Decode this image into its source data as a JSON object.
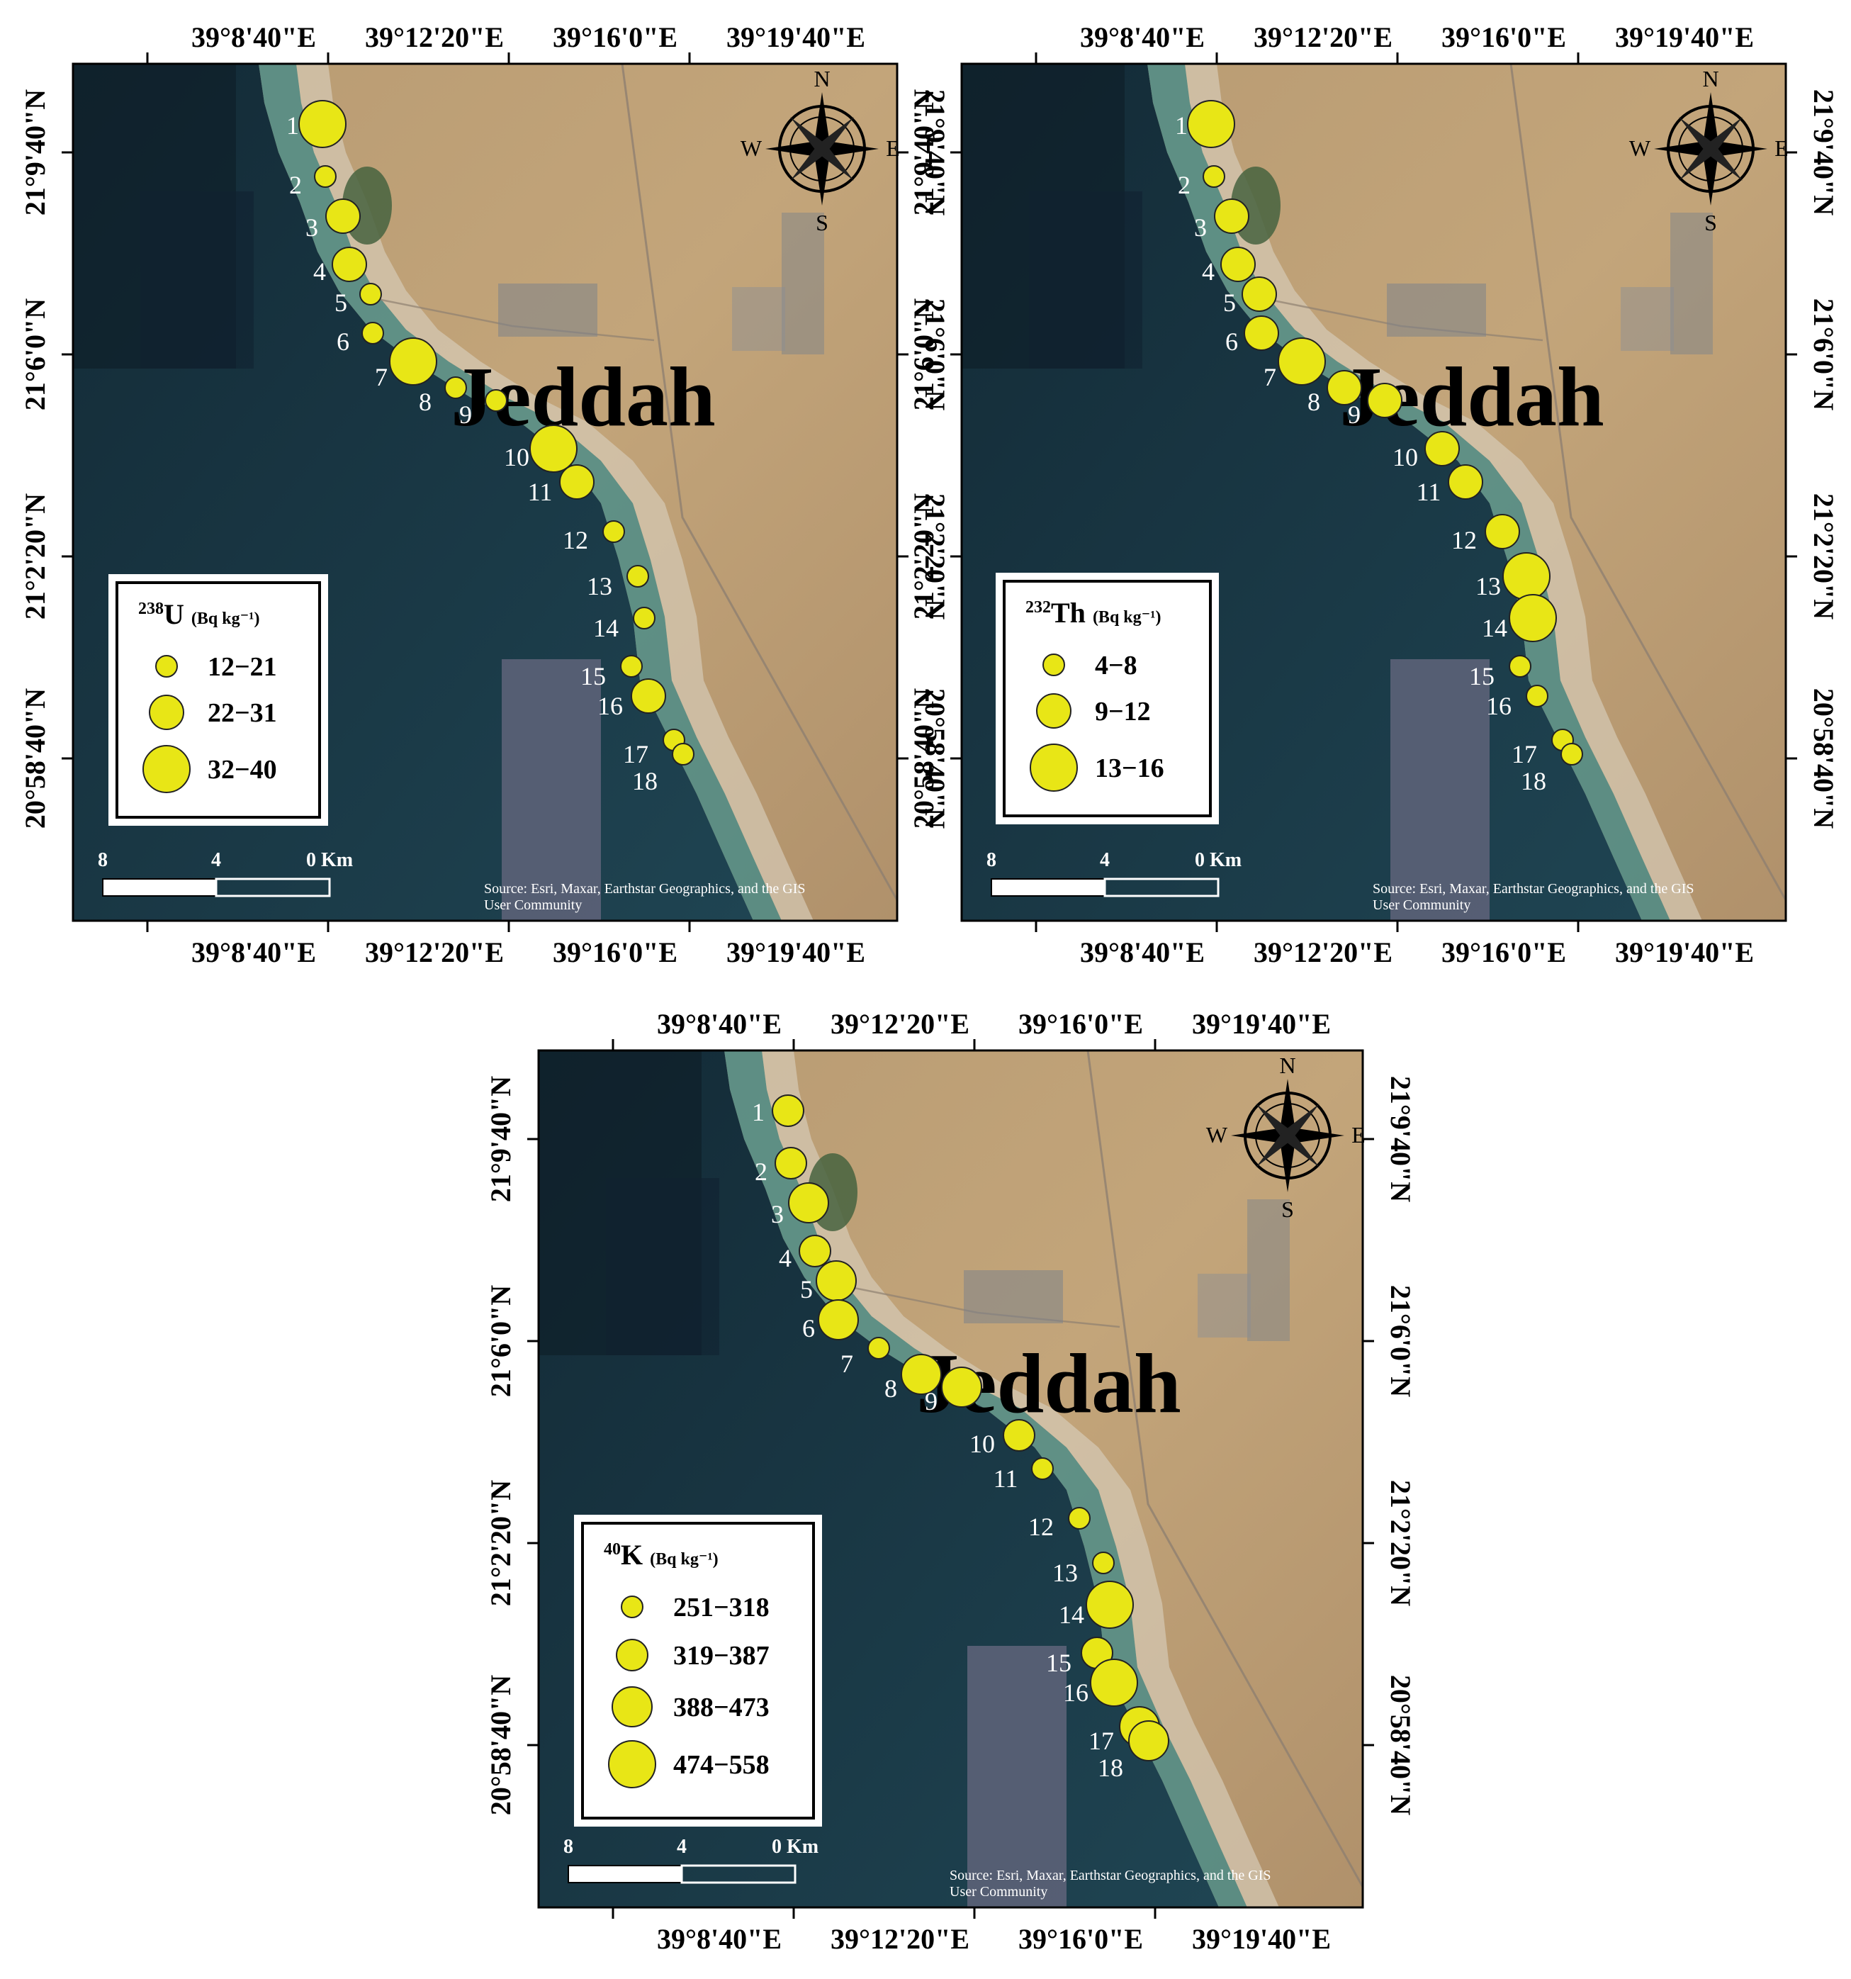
{
  "city_label": "Jeddah",
  "compass": {
    "n": "N",
    "s": "S",
    "e": "E",
    "w": "W"
  },
  "lon_ticks": [
    "39°8'40\"E",
    "39°12'20\"E",
    "39°16'0\"E",
    "39°19'40\"E"
  ],
  "lat_ticks": [
    "21°9'40\"N",
    "21°6'0\"N",
    "21°2'20\"N",
    "20°58'40\"N"
  ],
  "scale_bar": {
    "labels": [
      "8",
      "4",
      "0 Km"
    ]
  },
  "attribution": [
    "Source: Esri, Maxar, Earthstar Geographics, and the GIS",
    "User Community"
  ],
  "colors": {
    "marker_fill": "#e8e616",
    "marker_stroke": "#222222",
    "label_text": "#ffffff"
  },
  "panels": [
    {
      "id": "u238",
      "legend": {
        "isotope_mass": "238",
        "isotope_symbol": "U",
        "unit": "(Bq kg⁻¹)",
        "classes": [
          "12−21",
          "22−31",
          "32−40"
        ]
      },
      "site_class": [
        2,
        0,
        1,
        1,
        0,
        0,
        2,
        0,
        0,
        2,
        1,
        0,
        0,
        0,
        0,
        1,
        0,
        0
      ]
    },
    {
      "id": "th232",
      "legend": {
        "isotope_mass": "232",
        "isotope_symbol": "Th",
        "unit": "(Bq kg⁻¹)",
        "classes": [
          "4−8",
          "9−12",
          "13−16"
        ]
      },
      "site_class": [
        2,
        0,
        1,
        1,
        1,
        1,
        2,
        1,
        1,
        1,
        1,
        1,
        2,
        2,
        0,
        0,
        0,
        0
      ]
    },
    {
      "id": "k40",
      "legend": {
        "isotope_mass": "40",
        "isotope_symbol": "K",
        "unit": "(Bq kg⁻¹)",
        "classes": [
          "251−318",
          "319−387",
          "388−473",
          "474−558"
        ]
      },
      "site_class": [
        1,
        1,
        2,
        1,
        2,
        2,
        0,
        2,
        2,
        1,
        0,
        0,
        0,
        3,
        1,
        3,
        2,
        2
      ]
    }
  ],
  "sites": [
    "1",
    "2",
    "3",
    "4",
    "5",
    "6",
    "7",
    "8",
    "9",
    "10",
    "11",
    "12",
    "13",
    "14",
    "15",
    "16",
    "17",
    "18"
  ]
}
